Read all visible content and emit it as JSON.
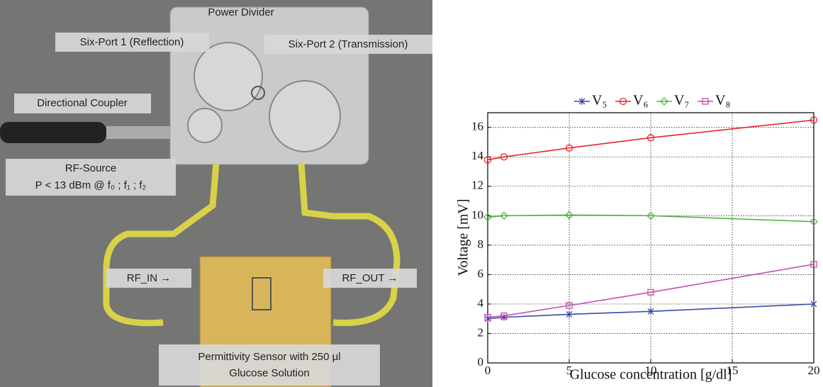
{
  "photo_labels": {
    "power_divider": "Power Divider",
    "six_port_1": "Six-Port 1 (Reflection)",
    "six_port_2": "Six-Port 2 (Transmission)",
    "directional_coupler": "Directional Coupler",
    "rf_source": [
      "RF-Source",
      "P < 13 dBm @ f₀ ; f₁ ; f₂"
    ],
    "rf_in": "RF_IN →",
    "rf_out": "RF_OUT →",
    "sensor": [
      "Permittivity Sensor with 250 µl",
      "Glucose Solution"
    ]
  },
  "chart_data": {
    "type": "line",
    "x_label": "Glucose concentration [g/dl]",
    "y_label": "Voltage [mV]",
    "x": [
      0,
      1,
      5,
      10,
      20
    ],
    "series": [
      {
        "name": "V₅",
        "color": "#3a4aa8",
        "marker": "x",
        "values": [
          3.0,
          3.1,
          3.3,
          3.5,
          4.0
        ]
      },
      {
        "name": "V₆",
        "color": "#e8242c",
        "marker": "circle",
        "values": [
          13.8,
          14.0,
          14.6,
          15.3,
          16.5
        ]
      },
      {
        "name": "V₇",
        "color": "#55b548",
        "marker": "diamond",
        "values": [
          9.9,
          10.0,
          10.05,
          10.0,
          9.6
        ]
      },
      {
        "name": "V₈",
        "color": "#c14fae",
        "marker": "square",
        "values": [
          3.1,
          3.2,
          3.9,
          4.8,
          6.7
        ]
      }
    ],
    "xlim": [
      0,
      20
    ],
    "xticks": [
      0,
      5,
      10,
      15,
      20
    ],
    "ylim": [
      0,
      17
    ],
    "yticks": [
      0,
      2,
      4,
      6,
      8,
      10,
      12,
      14,
      16
    ],
    "grid": true,
    "legend": "top"
  }
}
